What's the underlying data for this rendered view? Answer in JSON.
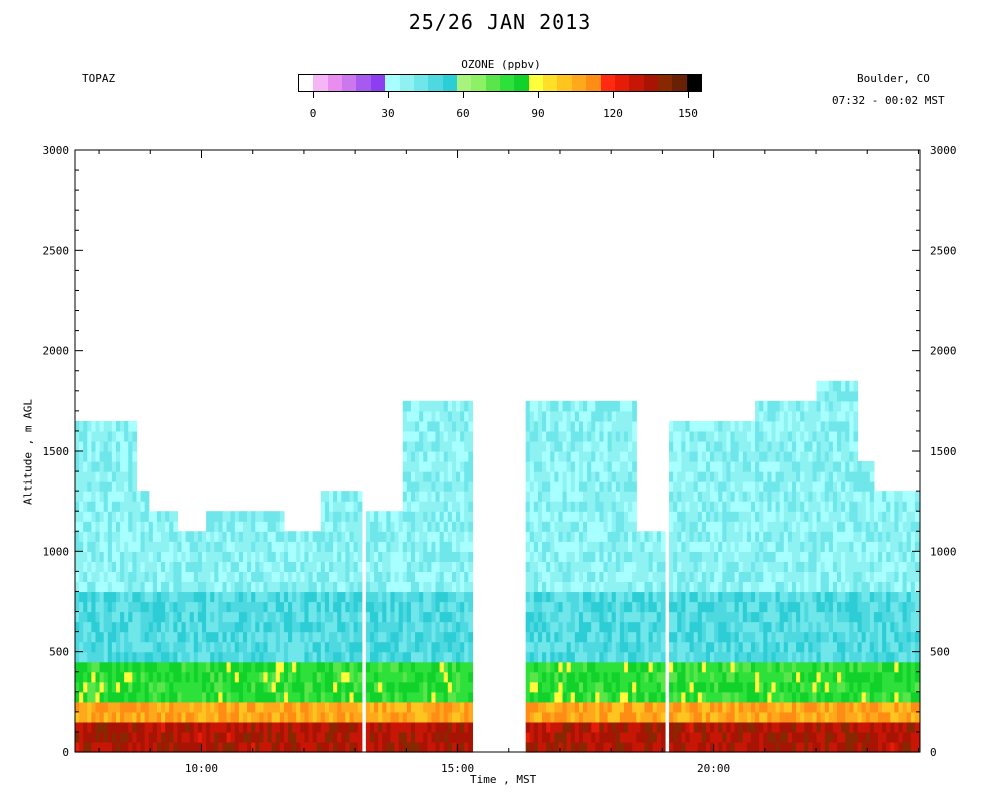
{
  "header": {
    "title": "25/26 JAN 2013",
    "instrument": "TOPAZ",
    "location": "Boulder, CO",
    "time_range": "07:32 - 00:02 MST"
  },
  "colorbar": {
    "title": "OZONE (ppbv)",
    "min": 0,
    "max": 150,
    "tick_labels": [
      "0",
      "30",
      "60",
      "90",
      "120",
      "150"
    ],
    "tick_values": [
      0,
      30,
      60,
      90,
      120,
      150
    ],
    "colors": [
      "#ffffff",
      "#f4b6f4",
      "#e98ef0",
      "#cc77ee",
      "#a65af0",
      "#8c3ff0",
      "#a8ffff",
      "#8ef2f2",
      "#6ee6ea",
      "#4ed8e0",
      "#2ccdd5",
      "#a8f27e",
      "#8ef064",
      "#5ae64a",
      "#2ee03a",
      "#10d22a",
      "#ffff3c",
      "#ffe028",
      "#ffc41e",
      "#ffa81c",
      "#ff8c14",
      "#ff2a10",
      "#e41c08",
      "#c81606",
      "#a81404",
      "#882800",
      "#6a2004",
      "#000000"
    ]
  },
  "chart_data": {
    "type": "heatmap",
    "title": "25/26 JAN 2013",
    "xlabel": "Time , MST",
    "ylabel": "Altitude , m AGL",
    "x_ticks": [
      "10:00",
      "15:00",
      "20:00"
    ],
    "x_tick_values": [
      10,
      15,
      20
    ],
    "xlim": [
      7.53,
      24.03
    ],
    "y_ticks": [
      "0",
      "500",
      "1000",
      "1500",
      "2000",
      "2500",
      "3000"
    ],
    "y_tick_values": [
      0,
      500,
      1000,
      1500,
      2000,
      2500,
      3000
    ],
    "ylim": [
      0,
      3000
    ],
    "z_label": "OZONE (ppbv)",
    "zlim": [
      0,
      150
    ],
    "gaps": [
      [
        13.1,
        13.2
      ],
      [
        15.3,
        16.3
      ],
      [
        19.03,
        19.15
      ]
    ],
    "profile_tops": [
      {
        "t0": 7.53,
        "t1": 8.7,
        "top": 1650
      },
      {
        "t0": 8.7,
        "t1": 9.0,
        "top": 1300
      },
      {
        "t0": 9.0,
        "t1": 9.5,
        "top": 1200
      },
      {
        "t0": 9.5,
        "t1": 10.1,
        "top": 1100
      },
      {
        "t0": 10.1,
        "t1": 11.6,
        "top": 1200
      },
      {
        "t0": 11.6,
        "t1": 12.3,
        "top": 1100
      },
      {
        "t0": 12.3,
        "t1": 13.1,
        "top": 1300
      },
      {
        "t0": 13.2,
        "t1": 13.9,
        "top": 1200
      },
      {
        "t0": 13.9,
        "t1": 15.3,
        "top": 1750
      },
      {
        "t0": 16.3,
        "t1": 18.5,
        "top": 1750
      },
      {
        "t0": 18.5,
        "t1": 19.03,
        "top": 1100
      },
      {
        "t0": 19.15,
        "t1": 20.8,
        "top": 1650
      },
      {
        "t0": 20.8,
        "t1": 22.0,
        "top": 1750
      },
      {
        "t0": 22.0,
        "t1": 22.8,
        "top": 1850
      },
      {
        "t0": 22.8,
        "t1": 23.1,
        "top": 1450
      },
      {
        "t0": 23.1,
        "t1": 24.03,
        "top": 1300
      }
    ],
    "layers": [
      {
        "z0": 0,
        "z1": 150,
        "ozone_ppbv": 130
      },
      {
        "z0": 150,
        "z1": 250,
        "ozone_ppbv": 105
      },
      {
        "z0": 250,
        "z1": 450,
        "ozone_ppbv": 80
      },
      {
        "z0": 450,
        "z1": 800,
        "ozone_ppbv": 50
      },
      {
        "z0": 800,
        "z1": 1850,
        "ozone_ppbv": 40
      }
    ]
  }
}
